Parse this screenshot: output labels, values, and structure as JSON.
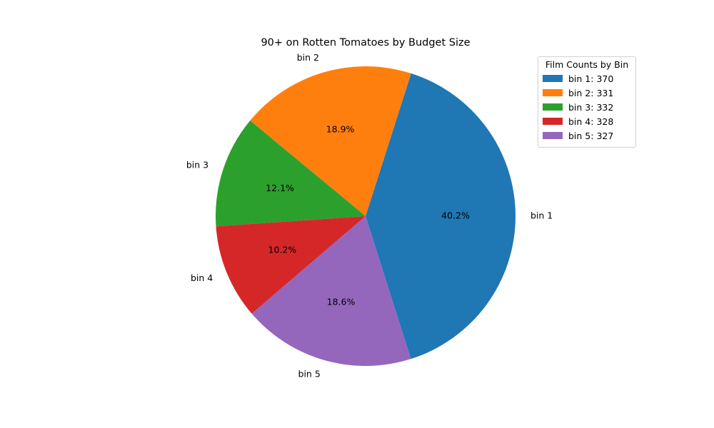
{
  "chart_data": {
    "type": "pie",
    "title": "90+ on Rotten Tomatoes by Budget Size",
    "categories": [
      "bin 1",
      "bin 2",
      "bin 3",
      "bin 4",
      "bin 5"
    ],
    "values": [
      40.2,
      18.9,
      12.1,
      10.2,
      18.6
    ],
    "percent_labels": [
      "40.2%",
      "18.9%",
      "12.1%",
      "10.2%",
      "18.6%"
    ],
    "colors": [
      "#1f77b4",
      "#ff7f0e",
      "#2ca02c",
      "#d62728",
      "#9467bd"
    ],
    "start_angle_deg": -72.4,
    "direction": "counterclockwise",
    "legend": {
      "title": "Film Counts by Bin",
      "placement": "top-right",
      "entries": [
        "bin 1: 370",
        "bin 2: 331",
        "bin 3: 332",
        "bin 4: 328",
        "bin 5: 327"
      ]
    }
  }
}
